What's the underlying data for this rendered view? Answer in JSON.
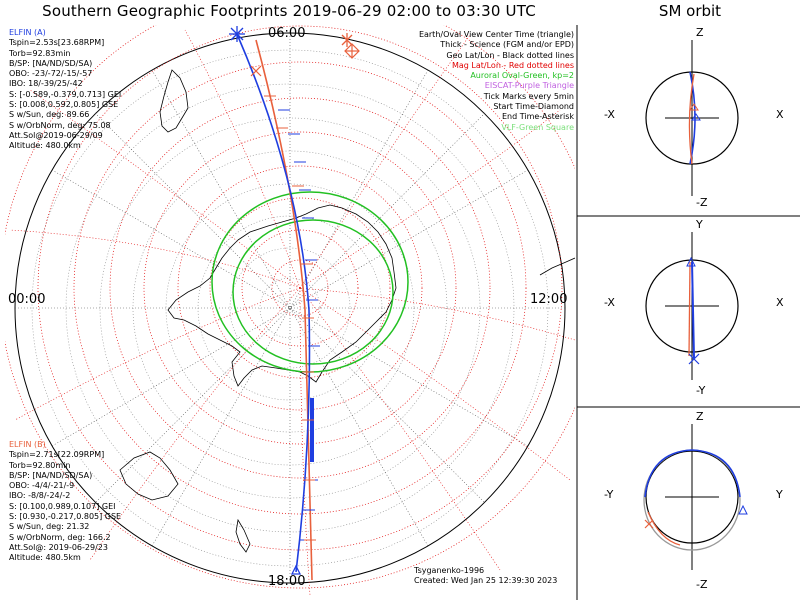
{
  "title": "Southern Geographic Footprints 2019-06-29 02:00 to 03:30 UTC",
  "side_title": "SM orbit",
  "time_labels": {
    "top": "06:00",
    "left": "00:00",
    "right": "12:00",
    "bottom": "18:00"
  },
  "elfin_a": {
    "name": "ELFIN (A)",
    "lines": [
      "Tspin=2.53s[23.68RPM]",
      "Torb=92.83min",
      "B/SP: [NA/ND/SD/SA)",
      "OBO: -23/-72/-15/-57",
      "IBO: 18/-39/25/-42",
      "S: [-0.589,-0.379,0.713] GEI",
      "S: [0.008,0.592,0.805] GSE",
      "S w/Sun, deg: 89.66",
      "S w/OrbNorm, deg: 75.08",
      "Att.Sol@2019-06-29/09",
      "Altitude: 480.0km"
    ],
    "color": "#1f3ee0"
  },
  "elfin_b": {
    "name": "ELFIN (B)",
    "lines": [
      "Tspin=2.71s[22.09RPM]",
      "Torb=92.80min",
      "B/SP: [NA/ND/SD/SA)",
      "OBO: -4/4/-21/-9",
      "IBO: -8/8/-24/-2",
      "S: [0.100,0.989,0.107] GEI",
      "S: [0.930,-0.217,0.805] GSE",
      "S w/Sun, deg: 21.32",
      "S w/OrbNorm, deg: 166.2",
      "Att.Sol@: 2019-06-29/23",
      "Altitude: 480.5km"
    ],
    "color": "#e8603c"
  },
  "legend": [
    {
      "text": "Earth/Oval View Center Time (triangle)",
      "color": "#000000"
    },
    {
      "text": "Thick - Science (FGM and/or EPD)",
      "color": "#000000"
    },
    {
      "text": "Geo Lat/Lon - Black dotted lines",
      "color": "#000000"
    },
    {
      "text": "Mag Lat/Lon - Red dotted lines",
      "color": "#e00000"
    },
    {
      "text": "Auroral Oval-Green, kp=2",
      "color": "#22c022"
    },
    {
      "text": "EISCAT-Purple Triangle",
      "color": "#c060e0"
    },
    {
      "text": "Tick Marks every 5min",
      "color": "#000000"
    },
    {
      "text": "Start Time-Diamond",
      "color": "#000000"
    },
    {
      "text": "End Time-Asterisk",
      "color": "#000000"
    },
    {
      "text": "VLF-Green Square",
      "color": "#7ce07c"
    }
  ],
  "credits": [
    "Tsyganenko-1996",
    "Created: Wed Jan 25 12:39:30 2023"
  ],
  "sm_panels": [
    {
      "top": "Z",
      "bottom": "-Z",
      "left": "-X",
      "right": "X"
    },
    {
      "top": "Y",
      "bottom": "-Y",
      "left": "-X",
      "right": "X"
    },
    {
      "top": "Z",
      "bottom": "-Z",
      "left": "-Y",
      "right": "Y"
    }
  ],
  "colors": {
    "elfin_a": "#1f3ee0",
    "elfin_b": "#e8603c",
    "oval": "#22c022",
    "mag_grid": "#e00000"
  }
}
